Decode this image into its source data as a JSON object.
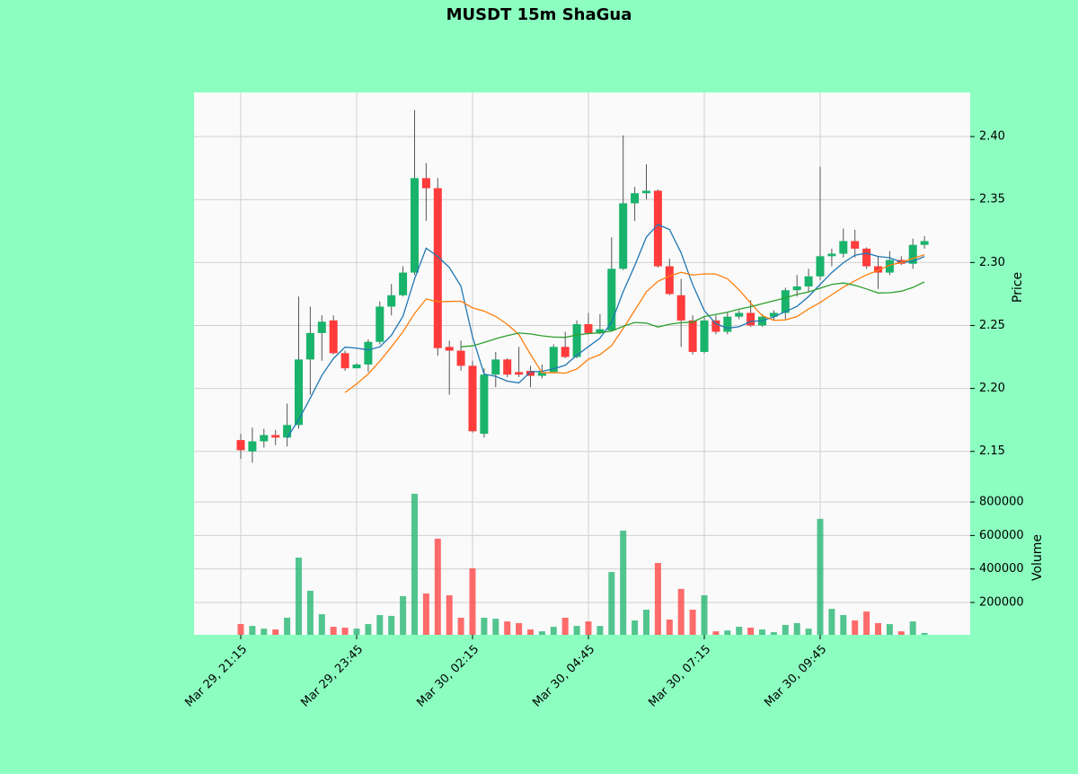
{
  "chart_data": {
    "type": "candlestick",
    "title": "MUSDT 15m ShaGua",
    "categories": [
      "Mar 29, 21:15",
      null,
      null,
      null,
      null,
      null,
      null,
      null,
      null,
      null,
      "Mar 29, 23:45",
      null,
      null,
      null,
      null,
      null,
      null,
      null,
      null,
      null,
      "Mar 30, 02:15",
      null,
      null,
      null,
      null,
      null,
      null,
      null,
      null,
      null,
      "Mar 30, 04:45",
      null,
      null,
      null,
      null,
      null,
      null,
      null,
      null,
      null,
      "Mar 30, 07:15",
      null,
      null,
      null,
      null,
      null,
      null,
      null,
      null,
      null,
      "Mar 30, 09:45",
      null,
      null,
      null,
      null,
      null,
      null,
      null,
      null,
      null
    ],
    "open": [
      2.159,
      2.15,
      2.158,
      2.163,
      2.161,
      2.171,
      2.223,
      2.244,
      2.254,
      2.228,
      2.216,
      2.219,
      2.237,
      2.265,
      2.274,
      2.292,
      2.367,
      2.359,
      2.233,
      2.23,
      2.218,
      2.164,
      2.211,
      2.223,
      2.213,
      2.214,
      2.21,
      2.213,
      2.233,
      2.225,
      2.251,
      2.244,
      2.246,
      2.295,
      2.347,
      2.355,
      2.357,
      2.297,
      2.274,
      2.254,
      2.229,
      2.254,
      2.245,
      2.257,
      2.26,
      2.25,
      2.257,
      2.26,
      2.278,
      2.281,
      2.289,
      2.305,
      2.307,
      2.317,
      2.311,
      2.297,
      2.292,
      2.302,
      2.299,
      2.314
    ],
    "high": [
      2.164,
      2.169,
      2.168,
      2.167,
      2.188,
      2.273,
      2.265,
      2.258,
      2.258,
      2.23,
      2.22,
      2.239,
      2.269,
      2.283,
      2.297,
      2.421,
      2.379,
      2.367,
      2.238,
      2.238,
      2.222,
      2.216,
      2.229,
      2.224,
      2.233,
      2.218,
      2.219,
      2.235,
      2.245,
      2.254,
      2.26,
      2.259,
      2.32,
      2.401,
      2.36,
      2.378,
      2.358,
      2.303,
      2.287,
      2.258,
      2.257,
      2.258,
      2.26,
      2.262,
      2.27,
      2.259,
      2.262,
      2.28,
      2.29,
      2.295,
      2.376,
      2.311,
      2.327,
      2.326,
      2.312,
      2.305,
      2.309,
      2.305,
      2.319,
      2.321
    ],
    "low": [
      2.144,
      2.141,
      2.153,
      2.155,
      2.154,
      2.168,
      2.195,
      2.222,
      2.227,
      2.214,
      2.216,
      2.213,
      2.235,
      2.258,
      2.273,
      2.29,
      2.333,
      2.226,
      2.195,
      2.214,
      2.165,
      2.161,
      2.201,
      2.209,
      2.209,
      2.201,
      2.208,
      2.212,
      2.224,
      2.224,
      2.243,
      2.243,
      2.245,
      2.294,
      2.333,
      2.35,
      2.296,
      2.274,
      2.233,
      2.227,
      2.228,
      2.243,
      2.243,
      2.255,
      2.249,
      2.249,
      2.254,
      2.255,
      2.273,
      2.277,
      2.286,
      2.297,
      2.304,
      2.304,
      2.295,
      2.279,
      2.29,
      2.298,
      2.295,
      2.311
    ],
    "close": [
      2.151,
      2.158,
      2.163,
      2.161,
      2.171,
      2.223,
      2.244,
      2.253,
      2.228,
      2.216,
      2.219,
      2.237,
      2.265,
      2.274,
      2.292,
      2.367,
      2.359,
      2.232,
      2.23,
      2.218,
      2.166,
      2.211,
      2.223,
      2.211,
      2.211,
      2.21,
      2.213,
      2.233,
      2.225,
      2.251,
      2.244,
      2.247,
      2.295,
      2.347,
      2.355,
      2.357,
      2.297,
      2.275,
      2.254,
      2.229,
      2.254,
      2.245,
      2.257,
      2.26,
      2.25,
      2.257,
      2.26,
      2.278,
      2.281,
      2.289,
      2.305,
      2.307,
      2.317,
      2.311,
      2.297,
      2.292,
      2.302,
      2.299,
      2.314,
      2.317
    ],
    "up_color": "#19b36b",
    "down_color": "#ff3b3b",
    "series": [
      {
        "color": "#1f77b4",
        "values": [
          null,
          null,
          null,
          null,
          2.1608,
          2.1752,
          2.1924,
          2.2104,
          2.2238,
          2.2328,
          2.232,
          2.2306,
          2.233,
          2.2422,
          2.2574,
          2.287,
          2.3114,
          2.3048,
          2.296,
          2.2812,
          2.241,
          2.2114,
          2.2096,
          2.2058,
          2.2044,
          2.2132,
          2.2136,
          2.2156,
          2.2184,
          2.2264,
          2.2332,
          2.24,
          2.2524,
          2.2768,
          2.2976,
          2.3202,
          2.3302,
          2.3262,
          2.3076,
          2.2824,
          2.2618,
          2.2514,
          2.2478,
          2.249,
          2.2532,
          2.2538,
          2.2568,
          2.261,
          2.2652,
          2.273,
          2.2826,
          2.292,
          2.2998,
          2.3058,
          2.3074,
          2.3048,
          2.3038,
          2.3002,
          2.3008,
          2.3048
        ]
      },
      {
        "color": "#ff7f0e",
        "values": [
          null,
          null,
          null,
          null,
          null,
          null,
          null,
          null,
          null,
          2.1968,
          2.2036,
          2.2115,
          2.2217,
          2.233,
          2.2451,
          2.2595,
          2.271,
          2.2689,
          2.2691,
          2.2693,
          2.264,
          2.2614,
          2.2572,
          2.2509,
          2.2428,
          2.2271,
          2.2125,
          2.2126,
          2.2121,
          2.2154,
          2.2232,
          2.2268,
          2.234,
          2.2476,
          2.262,
          2.2767,
          2.2851,
          2.2893,
          2.2922,
          2.29,
          2.291,
          2.2908,
          2.287,
          2.2783,
          2.2678,
          2.2578,
          2.2541,
          2.2544,
          2.2571,
          2.2631,
          2.2682,
          2.2744,
          2.2804,
          2.2855,
          2.2902,
          2.2937,
          2.2979,
          2.3,
          2.3033,
          2.3061
        ]
      },
      {
        "color": "#2ca02c",
        "values": [
          null,
          null,
          null,
          null,
          null,
          null,
          null,
          null,
          null,
          null,
          null,
          null,
          null,
          null,
          null,
          null,
          null,
          null,
          null,
          2.2331,
          2.2338,
          2.2365,
          2.2395,
          2.242,
          2.244,
          2.2433,
          2.2418,
          2.2408,
          2.2406,
          2.2424,
          2.2436,
          2.2441,
          2.2456,
          2.2493,
          2.2524,
          2.2519,
          2.2488,
          2.251,
          2.2522,
          2.2527,
          2.2571,
          2.2588,
          2.2605,
          2.263,
          2.2649,
          2.2673,
          2.2696,
          2.2719,
          2.2747,
          2.2766,
          2.2796,
          2.2826,
          2.2837,
          2.2819,
          2.279,
          2.2758,
          2.276,
          2.2772,
          2.2802,
          2.2846
        ]
      }
    ],
    "ylabel": "Price",
    "ylim": [
      2.127,
      2.435
    ],
    "yticks": [
      2.15,
      {
        "value": 2.2,
        "label": "2.20"
      },
      2.25,
      {
        "value": 2.3,
        "label": "2.30"
      },
      2.35,
      {
        "value": 2.4,
        "label": "2.40"
      }
    ],
    "volume": [
      71000,
      60000,
      44000,
      39000,
      109000,
      468000,
      270000,
      130000,
      55000,
      50000,
      44000,
      71000,
      125000,
      120000,
      238000,
      849000,
      254000,
      581000,
      243000,
      109000,
      404000,
      109000,
      103000,
      87000,
      77000,
      39000,
      28000,
      55000,
      109000,
      60000,
      87000,
      60000,
      382000,
      629000,
      93000,
      157000,
      436000,
      98000,
      281000,
      157000,
      243000,
      28000,
      33000,
      55000,
      50000,
      39000,
      23000,
      66000,
      77000,
      44000,
      699000,
      162000,
      125000,
      93000,
      146000,
      77000,
      71000,
      28000,
      87000,
      18000
    ],
    "y2label": "Volume",
    "y2lim": [
      7000,
      929000
    ],
    "y2ticks": [
      200000,
      400000,
      600000,
      800000
    ],
    "grid": true
  }
}
